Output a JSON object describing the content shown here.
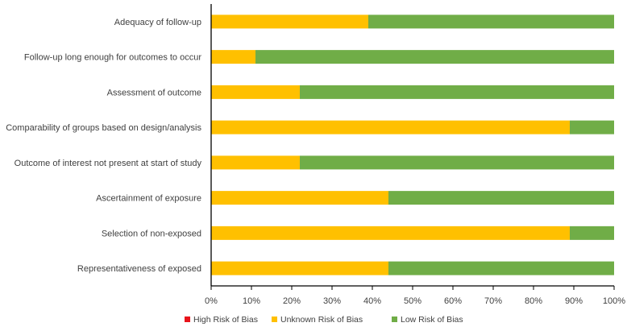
{
  "chart_data": {
    "type": "bar",
    "orientation": "horizontal",
    "stacked": true,
    "title": "",
    "xlabel": "",
    "ylabel": "",
    "xlim": [
      0,
      100
    ],
    "x_ticks": [
      "0%",
      "10%",
      "20%",
      "30%",
      "40%",
      "50%",
      "60%",
      "70%",
      "80%",
      "90%",
      "100%"
    ],
    "grid": false,
    "legend_position": "bottom",
    "categories": [
      "Adequacy of follow-up",
      "Follow-up long enough for outcomes to occur",
      "Assessment of outcome",
      "Comparability of groups based on design/analysis",
      "Outcome of interest not present at start of study",
      "Ascertainment of exposure",
      "Selection of non-exposed",
      "Representativeness of exposed"
    ],
    "series": [
      {
        "name": "High Risk of Bias",
        "color": "#e8141b",
        "values": [
          0,
          0,
          0,
          0,
          0,
          0,
          0,
          0
        ]
      },
      {
        "name": "Unknown Risk of Bias",
        "color": "#ffc000",
        "values": [
          39,
          11,
          22,
          89,
          22,
          44,
          89,
          44
        ]
      },
      {
        "name": "Low Risk of Bias",
        "color": "#70ad47",
        "values": [
          61,
          89,
          78,
          11,
          78,
          56,
          11,
          56
        ]
      }
    ]
  }
}
